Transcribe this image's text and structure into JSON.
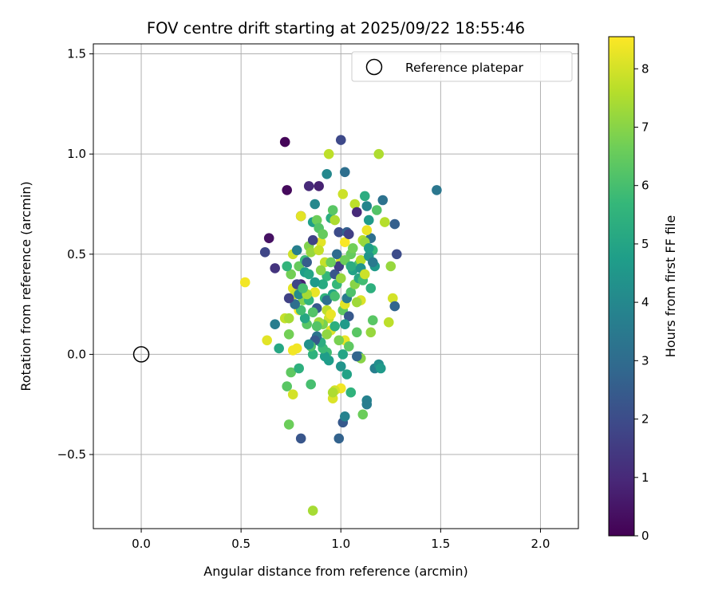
{
  "chart_data": {
    "type": "scatter",
    "title": "FOV centre drift starting at 2025/09/22 18:55:46",
    "xlabel": "Angular distance from reference (arcmin)",
    "ylabel": "Rotation from reference (arcmin)",
    "xlim": [
      -0.24,
      2.19
    ],
    "ylim": [
      -0.87,
      1.55
    ],
    "xticks": [
      0.0,
      0.5,
      1.0,
      1.5,
      2.0
    ],
    "xtick_labels": [
      "0.0",
      "0.5",
      "1.0",
      "1.5",
      "2.0"
    ],
    "yticks": [
      -0.5,
      0.0,
      0.5,
      1.0,
      1.5
    ],
    "ytick_labels": [
      "−0.5",
      "0.0",
      "0.5",
      "1.0",
      "1.5"
    ],
    "grid": true,
    "legend": {
      "position": "top-right",
      "entries": [
        {
          "label": "Reference platepar",
          "marker": "open-circle"
        }
      ]
    },
    "reference_point": {
      "x": 0.0,
      "y": 0.0
    },
    "colorbar": {
      "label": "Hours from first FF file",
      "range": [
        0,
        8.55
      ],
      "ticks": [
        0,
        1,
        2,
        3,
        4,
        5,
        6,
        7,
        8
      ],
      "tick_labels": [
        "0",
        "1",
        "2",
        "3",
        "4",
        "5",
        "6",
        "7",
        "8"
      ],
      "colormap": "viridis",
      "stops": [
        "#440154",
        "#482878",
        "#3e4989",
        "#31688e",
        "#26828e",
        "#1f9e89",
        "#35b779",
        "#6ece58",
        "#b5de2b",
        "#fde725"
      ]
    },
    "points": [
      [
        0.72,
        1.06,
        0.1
      ],
      [
        0.73,
        0.82,
        0.2
      ],
      [
        0.64,
        0.58,
        0.4
      ],
      [
        0.67,
        0.43,
        1.3
      ],
      [
        0.62,
        0.51,
        1.8
      ],
      [
        0.84,
        0.84,
        1.0
      ],
      [
        0.89,
        0.84,
        0.8
      ],
      [
        1.0,
        1.07,
        1.9
      ],
      [
        0.93,
        0.9,
        4.0
      ],
      [
        1.02,
        0.91,
        3.1
      ],
      [
        1.48,
        0.82,
        3.4
      ],
      [
        0.94,
        1.0,
        7.7
      ],
      [
        1.19,
        1.0,
        7.5
      ],
      [
        0.52,
        0.36,
        8.4
      ],
      [
        0.63,
        0.07,
        8.2
      ],
      [
        0.67,
        0.15,
        3.6
      ],
      [
        0.69,
        0.03,
        5.1
      ],
      [
        0.8,
        -0.42,
        2.3
      ],
      [
        0.99,
        -0.42,
        2.7
      ],
      [
        1.01,
        -0.34,
        2.4
      ],
      [
        1.02,
        -0.31,
        3.8
      ],
      [
        0.86,
        -0.78,
        7.4
      ],
      [
        0.74,
        -0.35,
        6.6
      ],
      [
        0.73,
        -0.16,
        6.3
      ],
      [
        0.76,
        -0.2,
        8.0
      ],
      [
        0.85,
        -0.15,
        6.0
      ],
      [
        0.75,
        -0.09,
        6.4
      ],
      [
        0.79,
        -0.07,
        5.4
      ],
      [
        1.11,
        -0.3,
        6.6
      ],
      [
        1.13,
        -0.23,
        3.8
      ],
      [
        1.13,
        -0.25,
        3.6
      ],
      [
        1.17,
        -0.07,
        3.7
      ],
      [
        1.19,
        -0.05,
        4.2
      ],
      [
        1.2,
        -0.07,
        4.6
      ],
      [
        0.72,
        0.18,
        7.8
      ],
      [
        0.74,
        0.18,
        7.4
      ],
      [
        0.76,
        0.33,
        8.2
      ],
      [
        0.77,
        0.3,
        7.9
      ],
      [
        0.79,
        0.22,
        8.5
      ],
      [
        0.8,
        0.35,
        0.8
      ],
      [
        0.8,
        0.69,
        0.4
      ],
      [
        0.8,
        0.69,
        8.2
      ],
      [
        0.76,
        0.5,
        7.9
      ],
      [
        0.78,
        0.52,
        3.7
      ],
      [
        0.79,
        0.44,
        6.5
      ],
      [
        0.82,
        0.47,
        5.8
      ],
      [
        0.84,
        0.54,
        6.9
      ],
      [
        0.86,
        0.66,
        4.8
      ],
      [
        0.87,
        0.75,
        4.0
      ],
      [
        0.88,
        0.67,
        6.6
      ],
      [
        0.89,
        0.63,
        6.2
      ],
      [
        0.9,
        0.56,
        8.2
      ],
      [
        0.91,
        0.6,
        6.5
      ],
      [
        0.92,
        0.46,
        7.8
      ],
      [
        0.93,
        0.39,
        5.7
      ],
      [
        0.95,
        0.68,
        5.3
      ],
      [
        0.96,
        0.72,
        6.3
      ],
      [
        0.97,
        0.67,
        7.5
      ],
      [
        0.99,
        0.61,
        2.0
      ],
      [
        1.0,
        0.47,
        8.0
      ],
      [
        1.01,
        0.8,
        7.9
      ],
      [
        1.02,
        0.56,
        8.5
      ],
      [
        1.03,
        0.61,
        2.6
      ],
      [
        1.04,
        0.6,
        1.6
      ],
      [
        1.05,
        0.5,
        6.5
      ],
      [
        1.06,
        0.53,
        6.7
      ],
      [
        1.07,
        0.75,
        7.7
      ],
      [
        1.08,
        0.71,
        1.0
      ],
      [
        1.09,
        0.45,
        6.1
      ],
      [
        1.1,
        0.47,
        7.6
      ],
      [
        1.11,
        0.57,
        7.6
      ],
      [
        1.12,
        0.79,
        5.3
      ],
      [
        1.13,
        0.74,
        3.9
      ],
      [
        1.14,
        0.67,
        4.6
      ],
      [
        1.15,
        0.58,
        3.1
      ],
      [
        1.16,
        0.52,
        5.7
      ],
      [
        1.17,
        0.44,
        4.6
      ],
      [
        1.18,
        0.72,
        6.2
      ],
      [
        1.21,
        0.77,
        3.2
      ],
      [
        1.22,
        0.66,
        7.6
      ],
      [
        1.25,
        0.44,
        7.2
      ],
      [
        1.27,
        0.65,
        2.6
      ],
      [
        1.28,
        0.5,
        2.0
      ],
      [
        1.26,
        0.28,
        8.0
      ],
      [
        1.27,
        0.24,
        2.8
      ],
      [
        1.24,
        0.16,
        7.7
      ],
      [
        1.15,
        0.11,
        7.2
      ],
      [
        1.16,
        0.17,
        6.3
      ],
      [
        1.15,
        0.33,
        5.4
      ],
      [
        1.1,
        0.27,
        8.1
      ],
      [
        1.08,
        0.11,
        6.3
      ],
      [
        1.09,
        -0.01,
        3.9
      ],
      [
        1.1,
        -0.02,
        7.0
      ],
      [
        1.05,
        -0.19,
        5.5
      ],
      [
        1.03,
        -0.1,
        4.9
      ],
      [
        1.02,
        0.07,
        8.3
      ],
      [
        1.01,
        0.0,
        5.0
      ],
      [
        1.0,
        -0.06,
        4.4
      ],
      [
        1.0,
        -0.17,
        8.4
      ],
      [
        0.97,
        -0.18,
        8.0
      ],
      [
        0.96,
        -0.22,
        8.1
      ],
      [
        0.96,
        -0.19,
        7.5
      ],
      [
        0.94,
        -0.03,
        4.7
      ],
      [
        0.93,
        0.01,
        5.9
      ],
      [
        0.92,
        -0.01,
        4.7
      ],
      [
        0.91,
        0.03,
        5.8
      ],
      [
        0.9,
        0.06,
        5.3
      ],
      [
        0.88,
        0.09,
        3.3
      ],
      [
        0.87,
        0.07,
        2.4
      ],
      [
        0.86,
        0.0,
        5.5
      ],
      [
        0.85,
        0.04,
        6.1
      ],
      [
        0.84,
        0.05,
        4.3
      ],
      [
        0.83,
        0.15,
        6.3
      ],
      [
        0.82,
        0.18,
        5.1
      ],
      [
        0.81,
        0.27,
        6.9
      ],
      [
        0.8,
        0.22,
        5.9
      ],
      [
        0.79,
        0.3,
        4.1
      ],
      [
        0.78,
        0.35,
        1.8
      ],
      [
        0.77,
        0.25,
        3.1
      ],
      [
        0.74,
        0.28,
        1.7
      ],
      [
        0.75,
        0.4,
        6.7
      ],
      [
        0.73,
        0.44,
        5.6
      ],
      [
        0.74,
        0.1,
        6.7
      ],
      [
        0.76,
        0.02,
        8.4
      ],
      [
        0.78,
        0.03,
        8.4
      ],
      [
        0.82,
        0.41,
        4.7
      ],
      [
        0.83,
        0.46,
        2.5
      ],
      [
        0.84,
        0.4,
        5.0
      ],
      [
        0.85,
        0.51,
        7.2
      ],
      [
        0.86,
        0.57,
        1.7
      ],
      [
        0.87,
        0.31,
        8.3
      ],
      [
        0.88,
        0.23,
        2.4
      ],
      [
        0.89,
        0.52,
        7.8
      ],
      [
        0.9,
        0.42,
        7.0
      ],
      [
        0.91,
        0.35,
        5.2
      ],
      [
        0.92,
        0.28,
        5.5
      ],
      [
        0.93,
        0.22,
        7.7
      ],
      [
        0.94,
        0.18,
        7.9
      ],
      [
        0.95,
        0.12,
        8.1
      ],
      [
        0.96,
        0.3,
        4.9
      ],
      [
        0.97,
        0.4,
        2.3
      ],
      [
        0.98,
        0.35,
        5.7
      ],
      [
        0.99,
        0.44,
        1.6
      ],
      [
        1.0,
        0.38,
        7.2
      ],
      [
        1.01,
        0.22,
        6.4
      ],
      [
        1.02,
        0.25,
        8.2
      ],
      [
        1.03,
        0.28,
        3.5
      ],
      [
        1.04,
        0.19,
        2.4
      ],
      [
        1.05,
        0.31,
        6.1
      ],
      [
        1.06,
        0.42,
        4.9
      ],
      [
        1.07,
        0.35,
        7.0
      ],
      [
        1.08,
        0.26,
        7.3
      ],
      [
        1.09,
        0.38,
        5.1
      ],
      [
        1.1,
        0.43,
        4.4
      ],
      [
        1.11,
        0.37,
        5.9
      ],
      [
        1.12,
        0.4,
        7.9
      ],
      [
        1.13,
        0.62,
        8.3
      ],
      [
        1.14,
        0.49,
        4.4
      ],
      [
        1.16,
        0.46,
        3.5
      ],
      [
        0.95,
        0.46,
        6.6
      ],
      [
        0.93,
        0.27,
        3.1
      ],
      [
        0.91,
        0.15,
        6.8
      ],
      [
        0.89,
        0.16,
        7.3
      ],
      [
        0.86,
        0.21,
        6.2
      ],
      [
        0.84,
        0.27,
        5.6
      ],
      [
        0.83,
        0.3,
        7.4
      ],
      [
        0.81,
        0.33,
        6.0
      ],
      [
        0.87,
        0.36,
        4.6
      ],
      [
        0.98,
        0.5,
        3.0
      ],
      [
        1.02,
        0.47,
        6.6
      ],
      [
        0.95,
        0.2,
        8.3
      ],
      [
        0.97,
        0.14,
        5.4
      ],
      [
        0.99,
        0.07,
        6.8
      ],
      [
        1.02,
        0.15,
        4.6
      ],
      [
        1.04,
        0.04,
        6.4
      ],
      [
        1.08,
        -0.01,
        2.8
      ],
      [
        0.93,
        0.1,
        7.1
      ],
      [
        0.88,
        0.14,
        6.2
      ],
      [
        0.97,
        0.29,
        6.0
      ],
      [
        1.05,
        0.44,
        5.3
      ],
      [
        1.12,
        0.56,
        7.2
      ],
      [
        1.14,
        0.53,
        4.7
      ]
    ]
  }
}
